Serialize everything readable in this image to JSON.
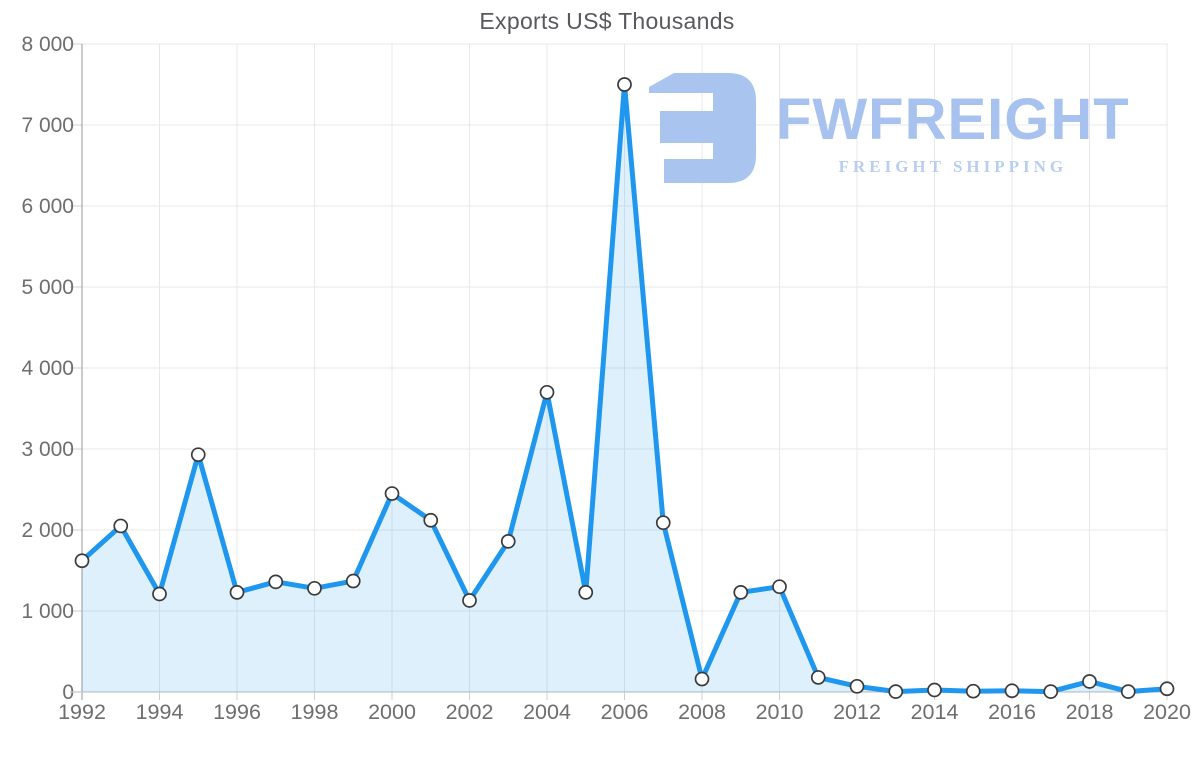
{
  "chart_data": {
    "type": "area",
    "title": "Exports US$ Thousands",
    "x": [
      1992,
      1993,
      1994,
      1995,
      1996,
      1997,
      1998,
      1999,
      2000,
      2001,
      2002,
      2003,
      2004,
      2005,
      2006,
      2007,
      2008,
      2009,
      2010,
      2011,
      2012,
      2013,
      2014,
      2015,
      2016,
      2017,
      2018,
      2019,
      2020
    ],
    "values": [
      1620,
      2050,
      1210,
      2930,
      1230,
      1360,
      1280,
      1370,
      2450,
      2120,
      1130,
      1860,
      3700,
      1230,
      7500,
      2090,
      160,
      1230,
      1300,
      180,
      70,
      5,
      25,
      10,
      15,
      5,
      130,
      5,
      40
    ],
    "xlabel": "",
    "ylabel": "",
    "ylim": [
      0,
      8000
    ],
    "y_ticks": [
      0,
      1000,
      2000,
      3000,
      4000,
      5000,
      6000,
      7000,
      8000
    ],
    "y_tick_labels": [
      "0",
      "1 000",
      "2 000",
      "3 000",
      "4 000",
      "5 000",
      "6 000",
      "7 000",
      "8 000"
    ],
    "x_tick_step": 2,
    "grid": true,
    "legend": "none",
    "line_color": "#1f97ef",
    "area_color": "rgba(31,151,239,0.14)",
    "marker_fill": "#ffffff",
    "marker_stroke": "#3a3a3a",
    "gridline_color": "#e8e8e8",
    "tick_color": "#cfcfcf",
    "y_axis_color": "#a9a9a9",
    "x_axis_color": "#c3c7cb",
    "label_color": "#6e6e6e"
  },
  "watermark": {
    "brand": "FWFREIGHT",
    "tagline": "FREIGHT SHIPPING",
    "logo_icon": "fwfreight-reversed-e-mark",
    "color": "#a9c4ef"
  }
}
